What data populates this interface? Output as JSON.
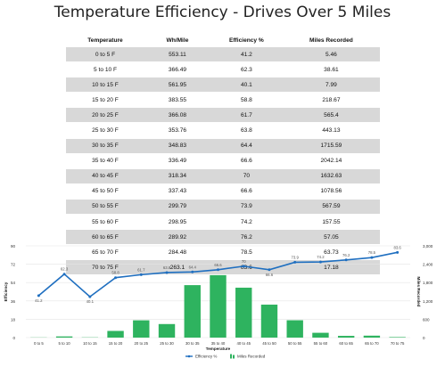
{
  "page_title": "Temperature Efficiency - Drives Over 5 Miles",
  "table": {
    "headers": [
      "Temperature",
      "Wh/Mile",
      "Efficiency %",
      "Miles Recorded"
    ],
    "rows": [
      [
        "0 to 5 F",
        "553.11",
        "41.2",
        "5.46"
      ],
      [
        "5 to 10 F",
        "366.49",
        "62.3",
        "38.61"
      ],
      [
        "10 to 15 F",
        "561.95",
        "40.1",
        "7.99"
      ],
      [
        "15 to 20 F",
        "383.55",
        "58.8",
        "218.67"
      ],
      [
        "20 to 25 F",
        "366.08",
        "61.7",
        "565.4"
      ],
      [
        "25 to 30 F",
        "353.76",
        "63.8",
        "443.13"
      ],
      [
        "30 to 35 F",
        "348.83",
        "64.4",
        "1715.59"
      ],
      [
        "35 to 40 F",
        "336.49",
        "66.6",
        "2042.14"
      ],
      [
        "40 to 45 F",
        "318.34",
        "70",
        "1632.63"
      ],
      [
        "45 to 50 F",
        "337.43",
        "66.6",
        "1078.56"
      ],
      [
        "50 to 55 F",
        "299.79",
        "73.9",
        "567.59"
      ],
      [
        "55 to 60 F",
        "298.95",
        "74.2",
        "157.55"
      ],
      [
        "60 to 65 F",
        "289.92",
        "76.2",
        "57.05"
      ],
      [
        "65 to 70 F",
        "284.48",
        "78.5",
        "63.73"
      ],
      [
        "70 to 75 F",
        "263.1",
        "83.6",
        "17.18"
      ]
    ]
  },
  "chart_data": {
    "type": "bar+line",
    "categories": [
      "0 to 5",
      "5 to 10",
      "10 to 15",
      "15 to 20",
      "20 to 25",
      "25 to 30",
      "30 to 35",
      "35 to 40",
      "40 to 45",
      "45 to 50",
      "50 to 55",
      "55 to 60",
      "60 to 65",
      "65 to 70",
      "70 to 75"
    ],
    "series": [
      {
        "name": "Efficiency %",
        "kind": "line",
        "axis": "left",
        "values": [
          41.2,
          62.3,
          40.1,
          58.8,
          61.7,
          63.8,
          64.4,
          66.6,
          70,
          66.6,
          73.9,
          74.2,
          76.2,
          78.5,
          83.6
        ]
      },
      {
        "name": "Miles Recorded",
        "kind": "bar",
        "axis": "right",
        "values": [
          5.46,
          38.61,
          7.99,
          218.67,
          565.4,
          443.13,
          1715.59,
          2042.14,
          1632.63,
          1078.56,
          567.59,
          157.55,
          57.05,
          63.73,
          17.18
        ]
      }
    ],
    "data_labels": [
      "41.2",
      "62.3",
      "40.1",
      "58.8",
      "61.7",
      "63.8",
      "64.4",
      "66.6",
      "70",
      "66.6",
      "73.9",
      "74.2",
      "76.2",
      "78.5",
      "83.6"
    ],
    "xlabel": "Temperature",
    "ylabel_left": "Efficiency",
    "ylabel_right": "Miles Recorded",
    "yticks_left": [
      "0",
      "18",
      "36",
      "54",
      "72",
      "90"
    ],
    "yticks_right": [
      "0",
      "600",
      "1,200",
      "1,800",
      "2,400",
      "3,000"
    ],
    "ylim_left": [
      0,
      90
    ],
    "ylim_right": [
      0,
      3000
    ],
    "grid": true,
    "legend_position": "bottom-center",
    "colors": {
      "line": "#1f6fc0",
      "bar": "#2eb35f",
      "grid": "#e4e4e4"
    }
  }
}
